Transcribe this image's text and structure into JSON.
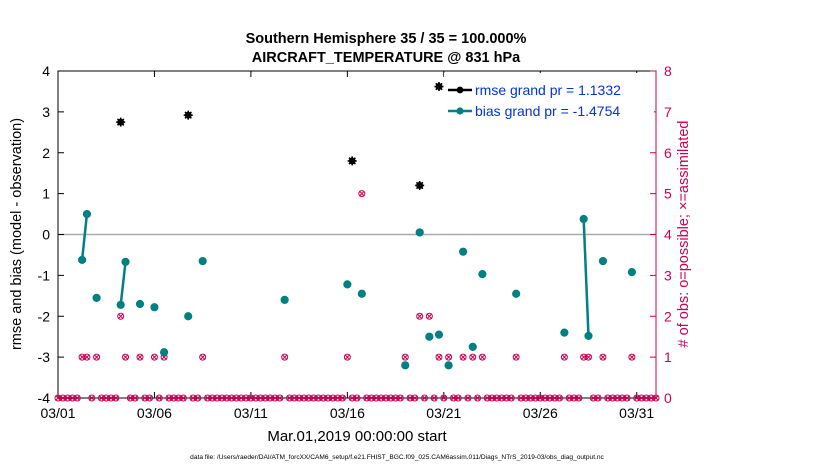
{
  "chart_data": {
    "type": "scatter",
    "title": "Southern Hemisphere 35 / 35 = 100.000%",
    "subtitle": "AIRCRAFT_TEMPERATURE @ 831 hPa",
    "xlabel": "Mar.01,2019 00:00:00 start",
    "ylabel_left": "rmse and bias (model - observation)",
    "ylabel_right": "# of obs: o=possible; ×=assimilated",
    "footnote": "data file: /Users/raeder/DAI/ATM_forcXX/CAM6_setup/f.e21.FHIST_BGC.f09_025.CAM6assim.011/Diags_NTrS_2019-03/obs_diag_output.nc",
    "xlim": [
      1,
      32
    ],
    "ylim_left": [
      -4,
      4
    ],
    "ylim_right": [
      0,
      8
    ],
    "x_ticks": [
      1,
      6,
      11,
      16,
      21,
      26,
      31
    ],
    "x_tick_labels": [
      "03/01",
      "03/06",
      "03/11",
      "03/16",
      "03/21",
      "03/26",
      "03/31"
    ],
    "y_ticks_left": [
      -4,
      -3,
      -2,
      -1,
      0,
      1,
      2,
      3,
      4
    ],
    "y_tick_labels_left": [
      "-4",
      "-3",
      "-2",
      "-1",
      "0",
      "1",
      "2",
      "3",
      "4"
    ],
    "y_ticks_right": [
      0,
      1,
      2,
      3,
      4,
      5,
      6,
      7,
      8
    ],
    "y_tick_labels_right": [
      "0",
      "1",
      "2",
      "3",
      "4",
      "5",
      "6",
      "7",
      "8"
    ],
    "zero_line": 0,
    "legend_position": "top-right",
    "colors": {
      "rmse": "#000000",
      "bias": "#008080",
      "obs": "#cc0055",
      "legend_text": "#0033dd",
      "zero_line": "#aaaaaa",
      "axis": "#000000"
    },
    "legend": [
      {
        "label": "rmse grand pr = 1.1332"
      },
      {
        "label": "bias grand pr = -1.4754"
      }
    ],
    "rmse_points": [
      [
        4.25,
        2.75
      ],
      [
        7.75,
        2.92
      ],
      [
        16.25,
        1.8
      ],
      [
        19.75,
        1.2
      ],
      [
        20.75,
        3.62
      ]
    ],
    "bias_segments": [
      [
        [
          2.25,
          -0.62
        ],
        [
          2.5,
          0.5
        ]
      ],
      [
        [
          4.25,
          -1.72
        ],
        [
          4.5,
          -0.67
        ]
      ],
      [
        [
          28.25,
          0.38
        ],
        [
          28.5,
          -2.48
        ]
      ]
    ],
    "bias_points": [
      [
        2.25,
        -0.62
      ],
      [
        2.5,
        0.5
      ],
      [
        3.0,
        -1.55
      ],
      [
        4.25,
        -1.72
      ],
      [
        4.5,
        -0.67
      ],
      [
        5.25,
        -1.7
      ],
      [
        6.0,
        -1.78
      ],
      [
        6.5,
        -2.88
      ],
      [
        7.75,
        -2.0
      ],
      [
        8.5,
        -0.65
      ],
      [
        12.75,
        -1.6
      ],
      [
        16.0,
        -1.22
      ],
      [
        16.75,
        -1.45
      ],
      [
        19.0,
        -3.2
      ],
      [
        19.75,
        0.05
      ],
      [
        20.25,
        -2.5
      ],
      [
        20.75,
        -2.45
      ],
      [
        21.25,
        -3.2
      ],
      [
        22.0,
        -0.42
      ],
      [
        22.5,
        -2.75
      ],
      [
        23.0,
        -0.97
      ],
      [
        24.75,
        -1.45
      ],
      [
        27.25,
        -2.4
      ],
      [
        28.25,
        0.38
      ],
      [
        28.5,
        -2.48
      ],
      [
        29.25,
        -0.65
      ],
      [
        30.75,
        -0.92
      ]
    ],
    "obs_assimilated": [
      [
        2.25,
        1
      ],
      [
        2.5,
        1
      ],
      [
        3.0,
        1
      ],
      [
        4.25,
        2
      ],
      [
        4.5,
        1
      ],
      [
        5.25,
        1
      ],
      [
        6.0,
        1
      ],
      [
        6.5,
        1
      ],
      [
        7.75,
        2
      ],
      [
        8.5,
        1
      ],
      [
        12.75,
        1
      ],
      [
        16.0,
        1
      ],
      [
        16.75,
        5
      ],
      [
        19.0,
        1
      ],
      [
        19.75,
        2
      ],
      [
        20.25,
        2
      ],
      [
        20.75,
        1
      ],
      [
        21.25,
        1
      ],
      [
        22.0,
        1
      ],
      [
        22.5,
        1
      ],
      [
        23.0,
        1
      ],
      [
        24.75,
        1
      ],
      [
        27.25,
        1
      ],
      [
        28.25,
        1
      ],
      [
        28.5,
        1
      ],
      [
        29.25,
        1
      ],
      [
        30.75,
        1
      ]
    ],
    "obs_possible": [
      [
        2.25,
        1
      ],
      [
        2.5,
        1
      ],
      [
        3.0,
        1
      ],
      [
        4.25,
        2
      ],
      [
        4.5,
        1
      ],
      [
        5.25,
        1
      ],
      [
        6.0,
        1
      ],
      [
        6.5,
        1
      ],
      [
        7.75,
        2
      ],
      [
        8.5,
        1
      ],
      [
        12.75,
        1
      ],
      [
        16.0,
        1
      ],
      [
        16.75,
        5
      ],
      [
        19.0,
        1
      ],
      [
        19.75,
        2
      ],
      [
        20.25,
        2
      ],
      [
        20.75,
        1
      ],
      [
        21.25,
        1
      ],
      [
        22.0,
        1
      ],
      [
        22.5,
        1
      ],
      [
        23.0,
        1
      ],
      [
        24.75,
        1
      ],
      [
        27.25,
        1
      ],
      [
        28.25,
        1
      ],
      [
        28.5,
        1
      ],
      [
        29.25,
        1
      ],
      [
        30.75,
        1
      ]
    ],
    "zero_obs_interval": 0.25
  }
}
